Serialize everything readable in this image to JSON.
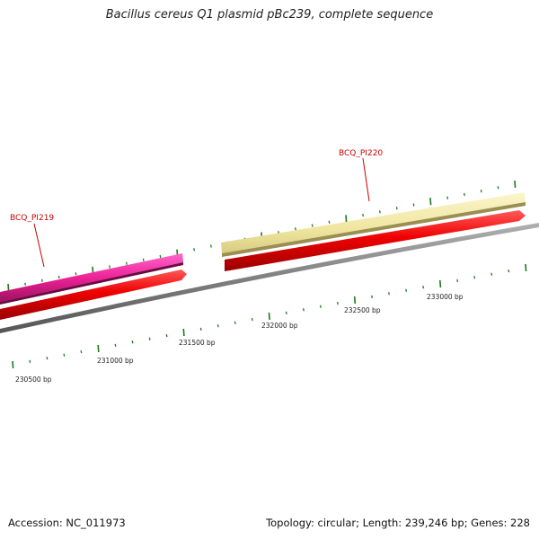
{
  "title": "Bacillus cereus Q1 plasmid pBc239, complete sequence",
  "accession_text": "Accession: NC_011973",
  "summary_text": "Topology: circular; Length: 239,246 bp; Genes: 228",
  "genes": [
    {
      "id": "BCQ_PI219",
      "label_color": "#cc0000"
    },
    {
      "id": "BCQ_PI220",
      "label_color": "#cc0000"
    }
  ],
  "position_labels": [
    "230500 bp",
    "231000 bp",
    "231500 bp",
    "232000 bp",
    "232500 bp",
    "233000 bp"
  ],
  "colors": {
    "pi219_feature": "#ee2299",
    "pi220_feature": "#f0e6a0",
    "cds": "#ee0000",
    "backbone": "#808080",
    "ticks": "#1a7a1a"
  }
}
